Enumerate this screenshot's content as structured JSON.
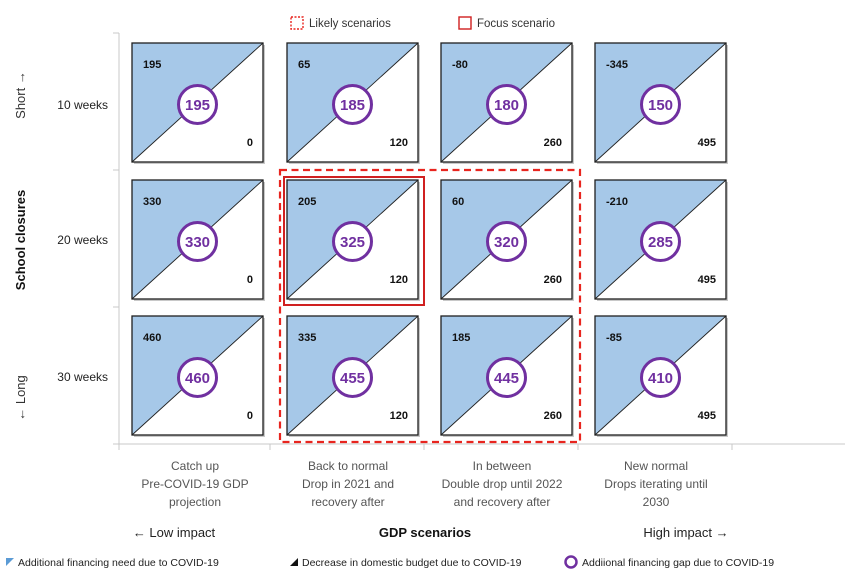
{
  "chart_data": {
    "type": "table",
    "title": "",
    "legend_top": {
      "likely": "Likely scenarios",
      "focus": "Focus scenario"
    },
    "y_axis": {
      "title": "School closures",
      "short_label": "Short →",
      "long_label": "← Long",
      "rows": [
        "10 weeks",
        "20 weeks",
        "30 weeks"
      ]
    },
    "x_axis": {
      "title": "GDP scenarios",
      "low_label": "← Low impact",
      "high_label": "High impact →",
      "columns": [
        [
          "Catch up",
          "Pre-COVID-19 GDP",
          "projection"
        ],
        [
          "Back to normal",
          "Drop in 2021 and",
          "recovery after"
        ],
        [
          "In between",
          "Double drop until 2022",
          "and recovery after"
        ],
        [
          "New normal",
          "Drops iterating until",
          "2030"
        ]
      ]
    },
    "cells": [
      [
        {
          "need": 195,
          "decrease": 0,
          "gap": 195
        },
        {
          "need": 65,
          "decrease": 120,
          "gap": 185
        },
        {
          "need": -80,
          "decrease": 260,
          "gap": 180
        },
        {
          "need": -345,
          "decrease": 495,
          "gap": 150
        }
      ],
      [
        {
          "need": 330,
          "decrease": 0,
          "gap": 330
        },
        {
          "need": 205,
          "decrease": 120,
          "gap": 325
        },
        {
          "need": 60,
          "decrease": 260,
          "gap": 320
        },
        {
          "need": -210,
          "decrease": 495,
          "gap": 285
        }
      ],
      [
        {
          "need": 460,
          "decrease": 0,
          "gap": 460
        },
        {
          "need": 335,
          "decrease": 120,
          "gap": 455
        },
        {
          "need": 185,
          "decrease": 260,
          "gap": 445
        },
        {
          "need": -85,
          "decrease": 495,
          "gap": 410
        }
      ]
    ],
    "likely_scenarios": {
      "rows": [
        1,
        2
      ],
      "columns": [
        1,
        2
      ]
    },
    "focus_scenario": {
      "row": 1,
      "column": 1
    },
    "bottom_legend": [
      "Additional financing need due to COVID-19",
      "Decrease in domestic budget due to COVID-19",
      "Addiional financing gap due to COVID-19"
    ],
    "colors": {
      "need_fill": "#a6c8e8",
      "cell_border": "#1f1f1f",
      "circle": "#7030a0",
      "likely_dash": "#e8251f",
      "focus": "#d02020",
      "axis_line": "#c8c8c8"
    }
  }
}
